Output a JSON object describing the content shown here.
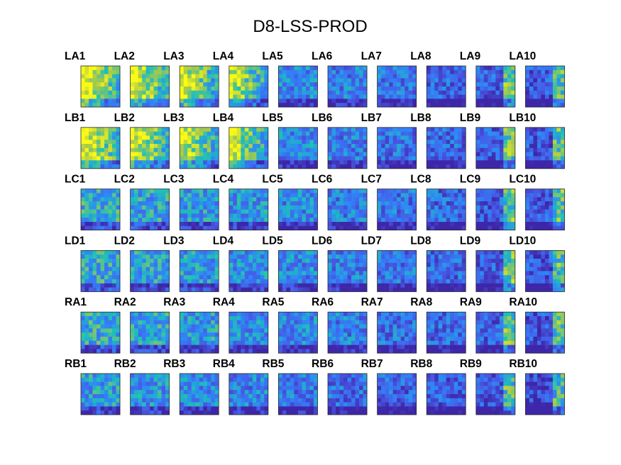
{
  "chart_data": {
    "type": "heatmap",
    "title": "D8-LSS-PROD",
    "rows": [
      "LA",
      "LB",
      "LC",
      "LD",
      "RA",
      "RB"
    ],
    "columns": 10,
    "colormap": "parula",
    "colors": {
      "dark_blue": "#3e26a8",
      "blue": "#2e87f7",
      "teal": "#1fbfb9",
      "yellow": "#fafa14"
    },
    "panels": [
      {
        "row": "LA",
        "labels": [
          "LA1",
          "LA2",
          "LA3",
          "LA4",
          "LA5",
          "LA6",
          "LA7",
          "LA8",
          "LA9",
          "LA10"
        ]
      },
      {
        "row": "LB",
        "labels": [
          "LB1",
          "LB2",
          "LB3",
          "LB4",
          "LB5",
          "LB6",
          "LB7",
          "LB8",
          "LB9",
          "LB10"
        ]
      },
      {
        "row": "LC",
        "labels": [
          "LC1",
          "LC2",
          "LC3",
          "LC4",
          "LC5",
          "LC6",
          "LC7",
          "LC8",
          "LC9",
          "LC10"
        ]
      },
      {
        "row": "LD",
        "labels": [
          "LD1",
          "LD2",
          "LD3",
          "LD4",
          "LD5",
          "LD6",
          "LD7",
          "LD8",
          "LD9",
          "LD10"
        ]
      },
      {
        "row": "RA",
        "labels": [
          "RA1",
          "RA2",
          "RA3",
          "RA4",
          "RA5",
          "RA6",
          "RA7",
          "RA8",
          "RA9",
          "RA10"
        ]
      },
      {
        "row": "RB",
        "labels": [
          "RB1",
          "RB2",
          "RB3",
          "RB4",
          "RB5",
          "RB6",
          "RB7",
          "RB8",
          "RB9",
          "RB10"
        ]
      }
    ]
  }
}
